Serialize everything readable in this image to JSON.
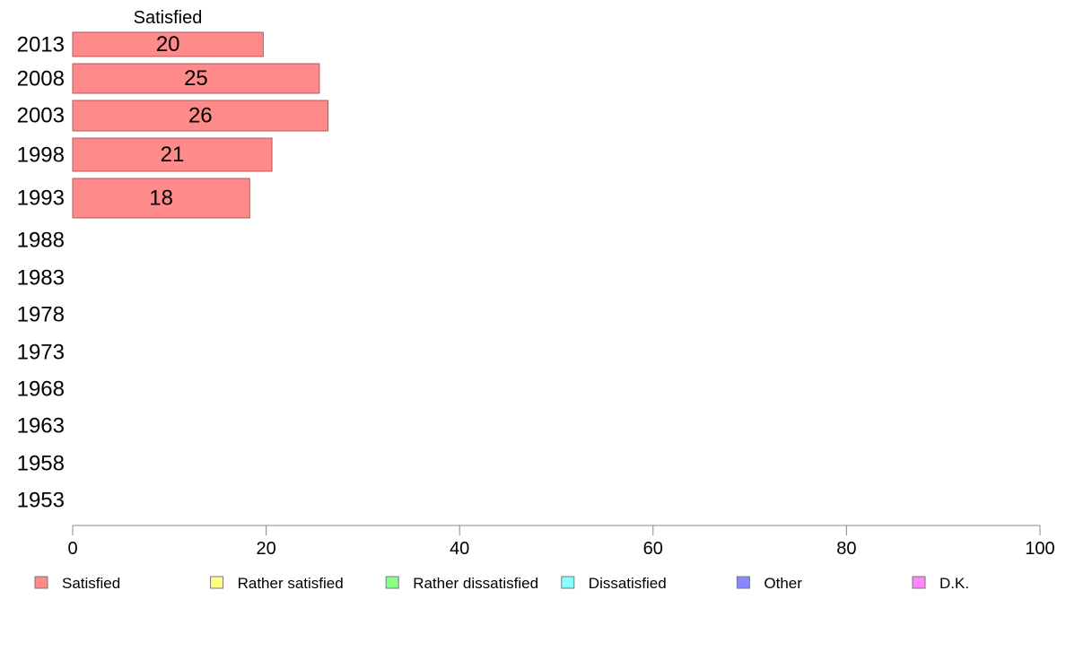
{
  "chart_data": {
    "type": "bar",
    "orientation": "horizontal",
    "stacked": true,
    "categories": [
      "2013",
      "2008",
      "2003",
      "1998",
      "1993",
      "1988",
      "1983",
      "1978",
      "1973",
      "1968",
      "1963",
      "1958",
      "1953"
    ],
    "series": [
      {
        "name": "Satisfied",
        "color": "#ff8a8a",
        "values": [
          20,
          25,
          26,
          21,
          18,
          null,
          null,
          null,
          null,
          null,
          null,
          null,
          null
        ]
      },
      {
        "name": "Rather satisfied",
        "color": "#ffff88",
        "values": [
          null,
          null,
          null,
          null,
          null,
          null,
          null,
          null,
          null,
          null,
          null,
          null,
          null
        ]
      },
      {
        "name": "Rather dissatisfied",
        "color": "#88ff88",
        "values": [
          null,
          null,
          null,
          null,
          null,
          null,
          null,
          null,
          null,
          null,
          null,
          null,
          null
        ]
      },
      {
        "name": "Dissatisfied",
        "color": "#88ffff",
        "values": [
          null,
          null,
          null,
          null,
          null,
          null,
          null,
          null,
          null,
          null,
          null,
          null,
          null
        ]
      },
      {
        "name": "Other",
        "color": "#8888ff",
        "values": [
          null,
          null,
          null,
          null,
          null,
          null,
          null,
          null,
          null,
          null,
          null,
          null,
          null
        ]
      },
      {
        "name": "D.K.",
        "color": "#ff88ff",
        "values": [
          null,
          null,
          null,
          null,
          null,
          null,
          null,
          null,
          null,
          null,
          null,
          null,
          null
        ]
      }
    ],
    "bar_values": [
      19.7,
      25.5,
      26.4,
      20.6,
      18.3
    ],
    "column_header": "Satisfied",
    "xlim": [
      0,
      100
    ],
    "xticks": [
      0,
      20,
      40,
      60,
      80,
      100
    ],
    "grid": false,
    "legend_position": "bottom"
  }
}
